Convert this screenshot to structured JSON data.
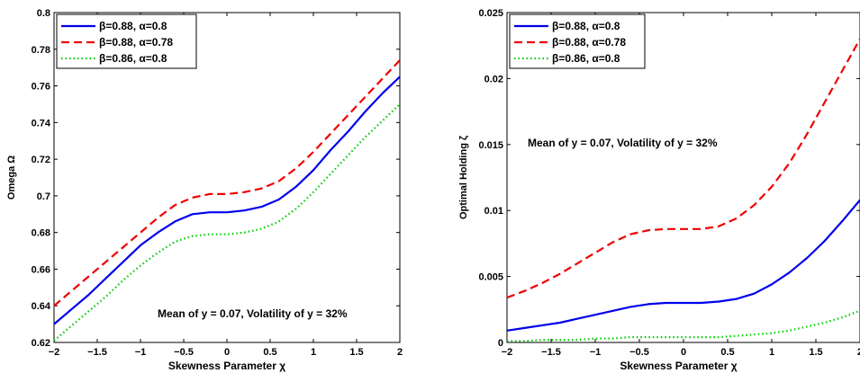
{
  "chart_data": [
    {
      "type": "line",
      "xlabel": "Skewness Parameter χ",
      "ylabel": "Omega Ω",
      "xlim": [
        -2,
        2
      ],
      "ylim": [
        0.62,
        0.8
      ],
      "xticks": [
        "−2",
        "−1.5",
        "−1",
        "−0.5",
        "0",
        "0.5",
        "1",
        "1.5",
        "2"
      ],
      "yticks": [
        "0.62",
        "0.64",
        "0.66",
        "0.68",
        "0.7",
        "0.72",
        "0.74",
        "0.76",
        "0.78",
        "0.8"
      ],
      "grid": false,
      "legend_position": "top-left",
      "annotation": "Mean of y = 0.07, Volatility of y = 32%",
      "x": [
        -2,
        -1.8,
        -1.6,
        -1.4,
        -1.2,
        -1.0,
        -0.8,
        -0.6,
        -0.4,
        -0.2,
        0,
        0.2,
        0.4,
        0.6,
        0.8,
        1.0,
        1.2,
        1.4,
        1.6,
        1.8,
        2.0
      ],
      "series": [
        {
          "name": "β=0.88, α=0.8",
          "color": "#0000ee",
          "dash": "solid",
          "values": [
            0.63,
            0.638,
            0.646,
            0.655,
            0.664,
            0.673,
            0.68,
            0.686,
            0.69,
            0.691,
            0.691,
            0.692,
            0.694,
            0.698,
            0.705,
            0.714,
            0.725,
            0.735,
            0.746,
            0.756,
            0.765
          ]
        },
        {
          "name": "β=0.88, α=0.78",
          "color": "#ee0000",
          "dash": "dashed",
          "values": [
            0.64,
            0.648,
            0.656,
            0.664,
            0.672,
            0.68,
            0.688,
            0.695,
            0.699,
            0.701,
            0.701,
            0.702,
            0.704,
            0.708,
            0.715,
            0.724,
            0.734,
            0.744,
            0.754,
            0.764,
            0.774
          ]
        },
        {
          "name": "β=0.86, α=0.8",
          "color": "#00cc00",
          "dash": "dotted",
          "values": [
            0.621,
            0.629,
            0.637,
            0.645,
            0.654,
            0.662,
            0.669,
            0.675,
            0.678,
            0.679,
            0.679,
            0.68,
            0.682,
            0.686,
            0.693,
            0.702,
            0.712,
            0.722,
            0.732,
            0.741,
            0.75
          ]
        }
      ]
    },
    {
      "type": "line",
      "xlabel": "Skewness Parameter χ",
      "ylabel": "Optimal Holding ζ",
      "xlim": [
        -2,
        2
      ],
      "ylim": [
        0,
        0.025
      ],
      "xticks": [
        "−2",
        "−1.5",
        "−1",
        "−0.5",
        "0",
        "0.5",
        "1",
        "1.5",
        "2"
      ],
      "yticks": [
        "0",
        "0.005",
        "0.01",
        "0.015",
        "0.02",
        "0.025"
      ],
      "grid": false,
      "legend_position": "top-left",
      "annotation": "Mean of y = 0.07, Volatility of y = 32%",
      "x": [
        -2,
        -1.8,
        -1.6,
        -1.4,
        -1.2,
        -1.0,
        -0.8,
        -0.6,
        -0.4,
        -0.2,
        0,
        0.2,
        0.4,
        0.6,
        0.8,
        1.0,
        1.2,
        1.4,
        1.6,
        1.8,
        2.0
      ],
      "series": [
        {
          "name": "β=0.88, α=0.8",
          "color": "#0000ee",
          "dash": "solid",
          "values": [
            0.0009,
            0.0011,
            0.0013,
            0.0015,
            0.0018,
            0.0021,
            0.0024,
            0.0027,
            0.0029,
            0.003,
            0.003,
            0.003,
            0.0031,
            0.0033,
            0.0037,
            0.0044,
            0.0053,
            0.0064,
            0.0077,
            0.0092,
            0.0108
          ]
        },
        {
          "name": "β=0.88, α=0.78",
          "color": "#ee0000",
          "dash": "dashed",
          "values": [
            0.0034,
            0.0039,
            0.0045,
            0.0052,
            0.006,
            0.0068,
            0.0076,
            0.0082,
            0.0085,
            0.0086,
            0.0086,
            0.0086,
            0.0088,
            0.0094,
            0.0104,
            0.0118,
            0.0136,
            0.0158,
            0.0182,
            0.0206,
            0.023
          ]
        },
        {
          "name": "β=0.86, α=0.8",
          "color": "#00cc00",
          "dash": "dotted",
          "values": [
            0.0001,
            0.0001,
            0.0002,
            0.0002,
            0.0002,
            0.0003,
            0.0003,
            0.0004,
            0.0004,
            0.0004,
            0.0004,
            0.0004,
            0.0004,
            0.0005,
            0.0006,
            0.0007,
            0.0009,
            0.0012,
            0.0015,
            0.0019,
            0.0024
          ]
        }
      ]
    }
  ]
}
